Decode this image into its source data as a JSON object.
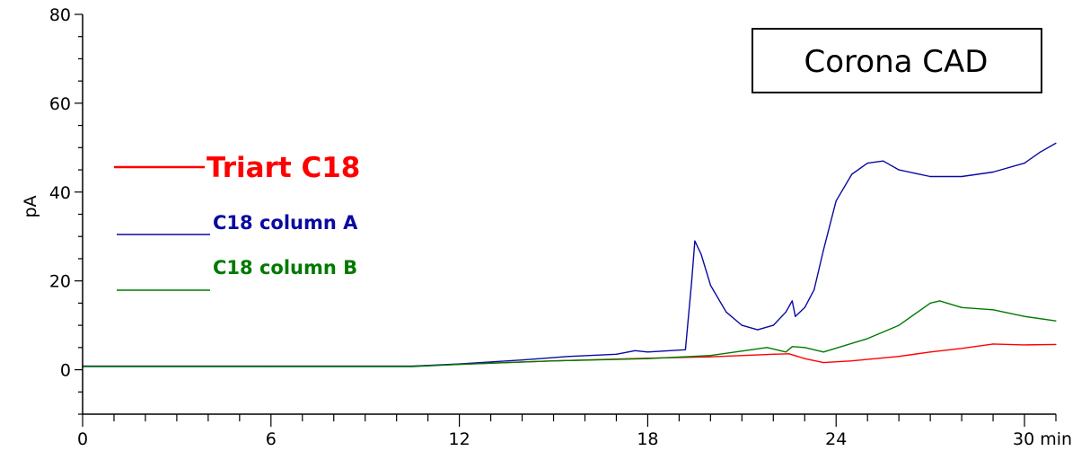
{
  "chart_data": {
    "type": "line",
    "ylabel": "pA",
    "xlabel": "",
    "x_unit_label": "min",
    "xlim": [
      0,
      31
    ],
    "ylim": [
      -10,
      80
    ],
    "x_ticks": [
      0,
      6,
      12,
      18,
      24,
      30
    ],
    "y_ticks": [
      0,
      20,
      40,
      60,
      80
    ],
    "grid": false,
    "legend_placement": "left",
    "annotation": "Corona CAD",
    "series": [
      {
        "name": "Triart C18",
        "color": "#ff0000",
        "x": [
          0,
          6,
          10.5,
          12,
          15,
          18,
          20,
          22,
          22.5,
          23,
          23.6,
          24.5,
          26,
          27,
          28,
          29,
          30,
          31
        ],
        "y": [
          0.8,
          0.8,
          0.8,
          1.2,
          2.0,
          2.6,
          2.9,
          3.5,
          3.6,
          2.5,
          1.6,
          2.0,
          3.0,
          4.0,
          4.8,
          5.8,
          5.6,
          5.7
        ]
      },
      {
        "name": "C18 column A",
        "color": "#0a0aa0",
        "x": [
          0,
          6,
          10.5,
          12,
          14,
          15.5,
          17,
          17.6,
          18,
          19.2,
          19.4,
          19.5,
          19.7,
          20,
          20.5,
          21,
          21.5,
          22,
          22.4,
          22.6,
          22.7,
          23,
          23.3,
          23.6,
          24,
          24.5,
          25,
          25.5,
          26,
          27,
          28,
          29,
          30,
          30.5,
          31
        ],
        "y": [
          0.8,
          0.8,
          0.8,
          1.3,
          2.2,
          3.0,
          3.5,
          4.3,
          4.0,
          4.5,
          20.0,
          29.0,
          26.0,
          19.0,
          13.0,
          10.0,
          9.0,
          10.0,
          13.0,
          15.5,
          12.0,
          14.0,
          18.0,
          27.0,
          38.0,
          44.0,
          46.5,
          47.0,
          45.0,
          43.5,
          43.5,
          44.5,
          46.5,
          49.0,
          51.0
        ]
      },
      {
        "name": "C18 column B",
        "color": "#007a00",
        "x": [
          0,
          6,
          10.5,
          12,
          15,
          18,
          20,
          21.8,
          22.4,
          22.6,
          23,
          23.6,
          25,
          26,
          27,
          27.3,
          28,
          29,
          30,
          31
        ],
        "y": [
          0.7,
          0.7,
          0.7,
          1.2,
          2.0,
          2.5,
          3.2,
          5.0,
          4.0,
          5.2,
          5.0,
          4.0,
          7.0,
          10.0,
          15.0,
          15.5,
          14.0,
          13.5,
          12.0,
          11.0
        ]
      }
    ]
  }
}
